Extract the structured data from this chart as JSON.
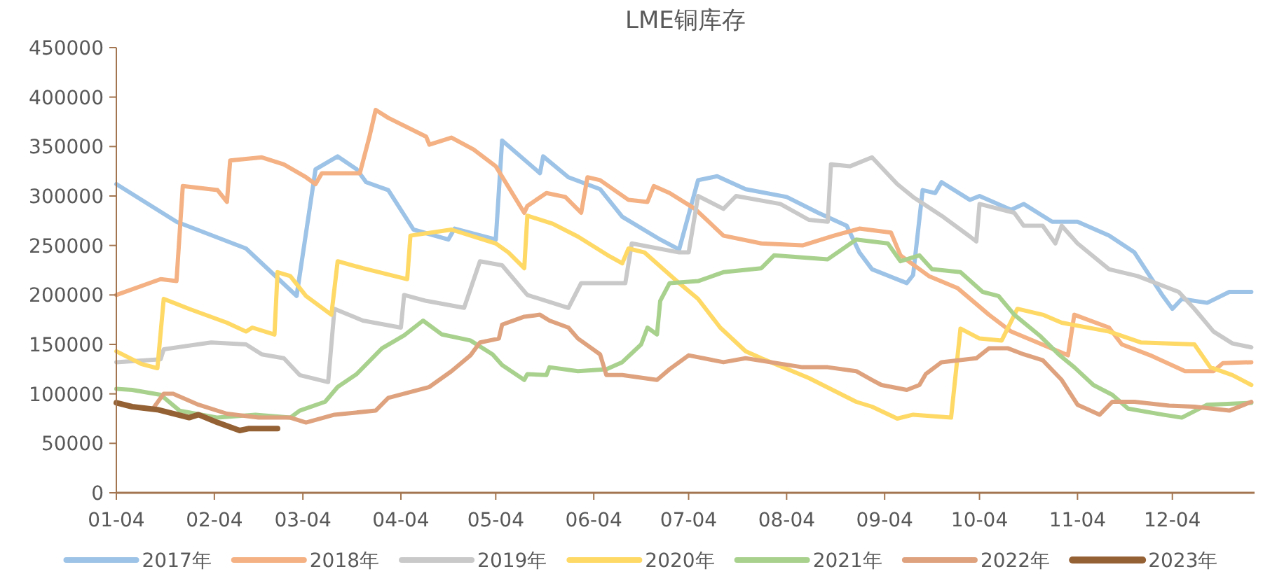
{
  "chart_data": {
    "type": "line",
    "title": "LME铜库存",
    "xlim": [
      "--01-04",
      "--12-30"
    ],
    "xticks": [
      {
        "value": "--01-04",
        "label": "01-04"
      },
      {
        "value": "--02-04",
        "label": "02-04"
      },
      {
        "value": "--03-04",
        "label": "03-04"
      },
      {
        "value": "--04-04",
        "label": "04-04"
      },
      {
        "value": "--05-04",
        "label": "05-04"
      },
      {
        "value": "--06-04",
        "label": "06-04"
      },
      {
        "value": "--07-04",
        "label": "07-04"
      },
      {
        "value": "--08-04",
        "label": "08-04"
      },
      {
        "value": "--09-04",
        "label": "09-04"
      },
      {
        "value": "--10-04",
        "label": "10-04"
      },
      {
        "value": "--11-04",
        "label": "11-04"
      },
      {
        "value": "--12-04",
        "label": "12-04"
      }
    ],
    "ylim": [
      0,
      450000
    ],
    "yticks": [
      0,
      50000,
      100000,
      150000,
      200000,
      250000,
      300000,
      350000,
      400000,
      450000
    ],
    "grid": false,
    "legend": "bottom",
    "marker": "none",
    "line_style": "solid",
    "series": [
      {
        "name": "2017年",
        "color": "#9dc3e6",
        "x": [
          "--01-04",
          "--01-23",
          "--02-14",
          "--03-02",
          "--03-08",
          "--03-15",
          "--03-21",
          "--03-24",
          "--03-31",
          "--04-08",
          "--04-19",
          "--04-21",
          "--05-04",
          "--05-06",
          "--05-18",
          "--05-19",
          "--05-27",
          "--06-06",
          "--06-13",
          "--06-25",
          "--07-01",
          "--07-07",
          "--07-13",
          "--07-22",
          "--08-04",
          "--08-14",
          "--08-23",
          "--08-27",
          "--08-31",
          "--09-11",
          "--09-13",
          "--09-16",
          "--09-20",
          "--09-22",
          "--10-01",
          "--10-04",
          "--10-14",
          "--10-18",
          "--10-27",
          "--11-04",
          "--11-14",
          "--11-22",
          "--12-01",
          "--12-04",
          "--12-07",
          "--12-15",
          "--12-22",
          "--12-29"
        ],
        "values": [
          312000,
          274000,
          247000,
          199000,
          327000,
          340000,
          327000,
          314000,
          306000,
          266000,
          256000,
          267000,
          256000,
          356000,
          323000,
          340000,
          319000,
          307000,
          279000,
          256000,
          246000,
          316000,
          320000,
          307000,
          299000,
          283000,
          270000,
          243000,
          226000,
          212000,
          220000,
          306000,
          303000,
          314000,
          296000,
          300000,
          286000,
          292000,
          274000,
          274000,
          260000,
          243000,
          199000,
          186000,
          196000,
          192000,
          203000,
          203000
        ]
      },
      {
        "name": "2018年",
        "color": "#f4b183",
        "x": [
          "--01-04",
          "--01-18",
          "--01-23",
          "--01-25",
          "--02-05",
          "--02-08",
          "--02-09",
          "--02-19",
          "--02-26",
          "--03-05",
          "--03-08",
          "--03-10",
          "--03-22",
          "--03-25",
          "--03-27",
          "--03-31",
          "--04-12",
          "--04-13",
          "--04-20",
          "--04-27",
          "--05-04",
          "--05-13",
          "--05-14",
          "--05-20",
          "--05-26",
          "--05-31",
          "--06-02",
          "--06-06",
          "--06-15",
          "--06-21",
          "--06-23",
          "--06-28",
          "--07-06",
          "--07-15",
          "--07-27",
          "--08-09",
          "--08-19",
          "--08-27",
          "--09-06",
          "--09-09",
          "--09-18",
          "--09-27",
          "--10-07",
          "--10-14",
          "--11-01",
          "--11-03",
          "--11-14",
          "--11-18",
          "--11-27",
          "--12-08",
          "--12-17",
          "--12-20",
          "--12-29"
        ],
        "values": [
          200000,
          216000,
          214000,
          310000,
          306000,
          294000,
          336000,
          339000,
          332000,
          319000,
          312000,
          323000,
          323000,
          359000,
          387000,
          379000,
          360000,
          352000,
          359000,
          347000,
          330000,
          283000,
          290000,
          303000,
          299000,
          283000,
          319000,
          316000,
          296000,
          294000,
          310000,
          303000,
          287000,
          260000,
          252000,
          250000,
          260000,
          267000,
          263000,
          240000,
          219000,
          207000,
          180000,
          163000,
          139000,
          180000,
          167000,
          150000,
          139000,
          123000,
          123000,
          131000,
          132000
        ]
      },
      {
        "name": "2019年",
        "color": "#c9c9c9",
        "x": [
          "--01-04",
          "--01-18",
          "--01-19",
          "--02-03",
          "--02-14",
          "--02-19",
          "--02-26",
          "--03-03",
          "--03-12",
          "--03-14",
          "--03-23",
          "--04-04",
          "--04-05",
          "--04-12",
          "--04-24",
          "--04-29",
          "--05-06",
          "--05-14",
          "--05-27",
          "--05-31",
          "--06-14",
          "--06-16",
          "--07-01",
          "--07-04",
          "--07-07",
          "--07-15",
          "--07-19",
          "--08-02",
          "--08-11",
          "--08-17",
          "--08-18",
          "--08-24",
          "--08-31",
          "--09-08",
          "--09-13",
          "--09-22",
          "--10-01",
          "--10-03",
          "--10-04",
          "--10-15",
          "--10-18",
          "--10-24",
          "--10-28",
          "--10-30",
          "--11-04",
          "--11-14",
          "--11-23",
          "--12-06",
          "--12-11",
          "--12-17",
          "--12-23",
          "--12-29"
        ],
        "values": [
          132000,
          135000,
          145000,
          152000,
          150000,
          140000,
          136000,
          119000,
          112000,
          186000,
          174000,
          167000,
          200000,
          194000,
          187000,
          234000,
          230000,
          200000,
          187000,
          212000,
          212000,
          252000,
          243000,
          243000,
          300000,
          287000,
          300000,
          292000,
          276000,
          274000,
          332000,
          330000,
          339000,
          312000,
          299000,
          280000,
          259000,
          254000,
          292000,
          283000,
          270000,
          270000,
          252000,
          270000,
          252000,
          226000,
          219000,
          203000,
          186000,
          163000,
          151000,
          147000
        ]
      },
      {
        "name": "2020年",
        "color": "#ffd966",
        "x": [
          "--01-04",
          "--01-12",
          "--01-17",
          "--01-19",
          "--01-27",
          "--02-08",
          "--02-14",
          "--02-16",
          "--02-23",
          "--02-24",
          "--02-28",
          "--03-05",
          "--03-13",
          "--03-15",
          "--03-23",
          "--04-06",
          "--04-07",
          "--04-20",
          "--05-04",
          "--05-08",
          "--05-13",
          "--05-14",
          "--05-22",
          "--05-30",
          "--06-09",
          "--06-13",
          "--06-15",
          "--06-20",
          "--07-01",
          "--07-07",
          "--07-14",
          "--07-22",
          "--07-27",
          "--08-11",
          "--08-26",
          "--08-31",
          "--09-08",
          "--09-13",
          "--09-25",
          "--09-28",
          "--10-04",
          "--10-11",
          "--10-16",
          "--10-24",
          "--10-30",
          "--11-14",
          "--11-24",
          "--12-11",
          "--12-16",
          "--12-23",
          "--12-29"
        ],
        "values": [
          143000,
          130000,
          126000,
          196000,
          186000,
          172000,
          163000,
          167000,
          160000,
          223000,
          219000,
          199000,
          180000,
          234000,
          227000,
          216000,
          260000,
          266000,
          252000,
          243000,
          227000,
          280000,
          272000,
          259000,
          239000,
          232000,
          247000,
          243000,
          212000,
          196000,
          167000,
          143000,
          136000,
          116000,
          92000,
          87000,
          75000,
          79000,
          76000,
          166000,
          156000,
          154000,
          186000,
          180000,
          172000,
          163000,
          152000,
          150000,
          127000,
          119000,
          109000
        ]
      },
      {
        "name": "2021年",
        "color": "#a9d18e",
        "x": [
          "--01-04",
          "--01-09",
          "--01-18",
          "--01-24",
          "--02-05",
          "--02-17",
          "--02-28",
          "--03-03",
          "--03-11",
          "--03-15",
          "--03-21",
          "--03-29",
          "--04-05",
          "--04-11",
          "--04-17",
          "--04-26",
          "--05-03",
          "--05-06",
          "--05-13",
          "--05-14",
          "--05-20",
          "--05-21",
          "--05-30",
          "--06-08",
          "--06-13",
          "--06-19",
          "--06-21",
          "--06-24",
          "--06-25",
          "--06-28",
          "--07-07",
          "--07-15",
          "--07-27",
          "--07-31",
          "--08-17",
          "--08-26",
          "--08-31",
          "--09-05",
          "--09-09",
          "--09-15",
          "--09-19",
          "--09-28",
          "--10-05",
          "--10-10",
          "--10-15",
          "--10-23",
          "--10-29",
          "--11-03",
          "--11-09",
          "--11-15",
          "--11-20",
          "--12-01",
          "--12-07",
          "--12-15",
          "--12-29"
        ],
        "values": [
          105000,
          104000,
          99000,
          83000,
          76000,
          79000,
          76000,
          83000,
          92000,
          107000,
          120000,
          146000,
          159000,
          174000,
          160000,
          154000,
          140000,
          129000,
          114000,
          120000,
          119000,
          127000,
          123000,
          125000,
          132000,
          150000,
          167000,
          160000,
          194000,
          212000,
          214000,
          223000,
          227000,
          240000,
          236000,
          256000,
          254000,
          252000,
          234000,
          240000,
          226000,
          223000,
          203000,
          199000,
          180000,
          159000,
          140000,
          127000,
          109000,
          99000,
          85000,
          79000,
          76000,
          89000,
          91000
        ]
      },
      {
        "name": "2022年",
        "color": "#dfa27e",
        "x": [
          "--01-16",
          "--01-19",
          "--01-22",
          "--01-30",
          "--02-08",
          "--02-18",
          "--02-28",
          "--03-05",
          "--03-14",
          "--03-27",
          "--03-31",
          "--04-13",
          "--04-20",
          "--04-26",
          "--04-29",
          "--05-05",
          "--05-06",
          "--05-13",
          "--05-18",
          "--05-21",
          "--05-27",
          "--05-30",
          "--06-06",
          "--06-08",
          "--06-13",
          "--06-24",
          "--06-28",
          "--07-04",
          "--07-15",
          "--07-22",
          "--08-09",
          "--08-17",
          "--08-26",
          "--08-31",
          "--09-03",
          "--09-11",
          "--09-15",
          "--09-17",
          "--09-22",
          "--10-03",
          "--10-07",
          "--10-13",
          "--10-18",
          "--10-24",
          "--10-30",
          "--11-04",
          "--11-11",
          "--11-15",
          "--11-22",
          "--12-03",
          "--12-11",
          "--12-22",
          "--12-29"
        ],
        "values": [
          87000,
          100000,
          100000,
          89000,
          80000,
          76000,
          76000,
          71000,
          79000,
          83000,
          96000,
          107000,
          123000,
          139000,
          152000,
          156000,
          170000,
          178000,
          180000,
          174000,
          167000,
          156000,
          140000,
          119000,
          119000,
          114000,
          125000,
          139000,
          132000,
          136000,
          127000,
          127000,
          123000,
          114000,
          109000,
          104000,
          109000,
          120000,
          132000,
          136000,
          146000,
          146000,
          140000,
          134000,
          114000,
          89000,
          79000,
          92000,
          92000,
          88000,
          87000,
          83000,
          92000
        ]
      },
      {
        "name": "2023年",
        "color": "#946134",
        "x": [
          "--01-04",
          "--01-09",
          "--01-17",
          "--01-27",
          "--01-30",
          "--02-05",
          "--02-12",
          "--02-15",
          "--02-24"
        ],
        "values": [
          91000,
          87000,
          84000,
          76000,
          79000,
          71000,
          63000,
          65000,
          65000
        ]
      }
    ]
  }
}
